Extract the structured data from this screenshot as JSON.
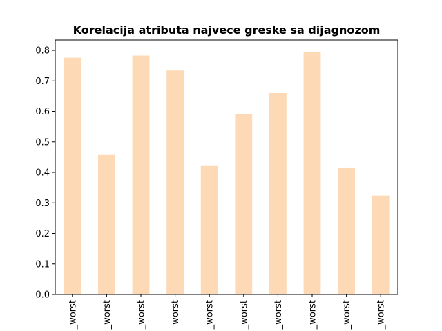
{
  "chart_data": {
    "type": "bar",
    "title": "Korelacija atributa najvece greske sa dijagnozom",
    "categories": [
      "_worst",
      "_worst",
      "_worst",
      "_worst",
      "_worst",
      "_worst",
      "_worst",
      "_worst",
      "_worst",
      "_worst"
    ],
    "values": [
      0.776,
      0.457,
      0.783,
      0.734,
      0.421,
      0.591,
      0.66,
      0.794,
      0.416,
      0.324
    ],
    "ylim": [
      0,
      0.834
    ],
    "yticks": [
      0.0,
      0.1,
      0.2,
      0.3,
      0.4,
      0.5,
      0.6,
      0.7,
      0.8
    ],
    "ytick_labels": [
      "0.0",
      "0.1",
      "0.2",
      "0.3",
      "0.4",
      "0.5",
      "0.6",
      "0.7",
      "0.8"
    ],
    "xlabel": "",
    "ylabel": "",
    "grid": false,
    "bar_color": "#FDD9B5"
  }
}
